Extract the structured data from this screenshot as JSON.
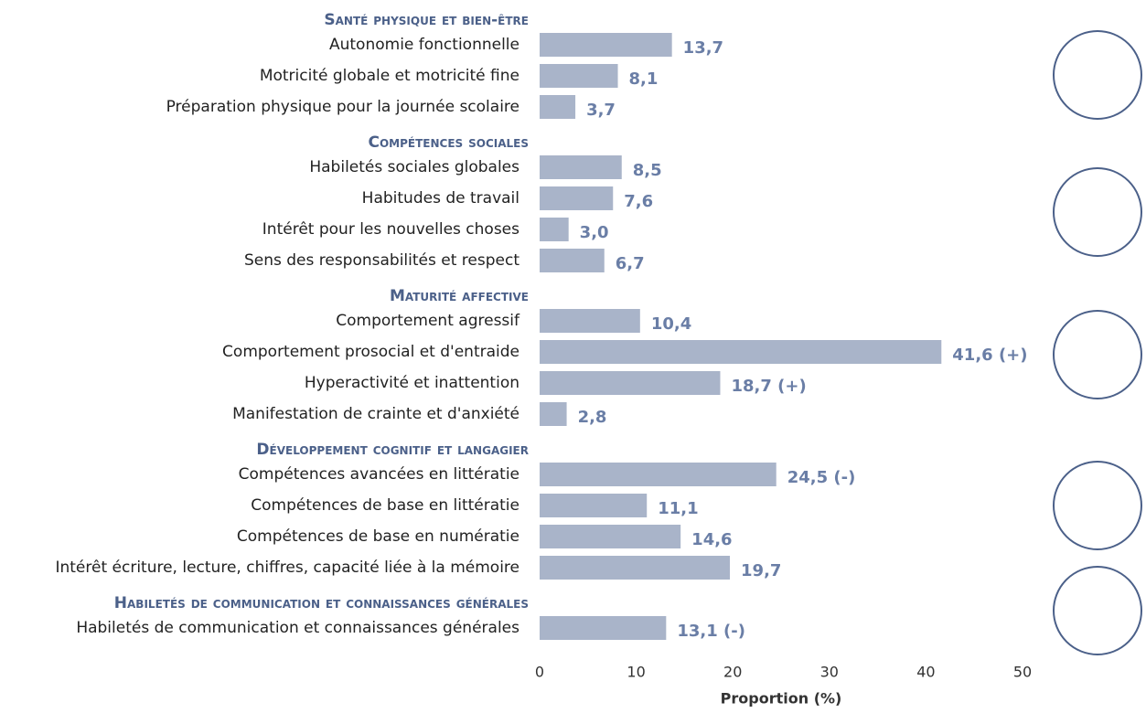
{
  "chart_data": {
    "type": "bar",
    "orientation": "horizontal",
    "color": "#a9b4c9",
    "label_color": "#6a7ea6",
    "xlabel": "Proportion (%)",
    "xlim": [
      0,
      50
    ],
    "xticks": [
      0,
      10,
      20,
      30,
      40,
      50
    ],
    "groups": [
      {
        "title": "Santé physique et bien-être",
        "categories": [
          "Autonomie fonctionnelle",
          "Motricité globale et motricité fine",
          "Préparation physique pour la journée scolaire"
        ],
        "values": [
          13.7,
          8.1,
          3.7
        ],
        "value_labels": [
          "13,7",
          "8,1",
          "3,7"
        ]
      },
      {
        "title": "Compétences sociales",
        "categories": [
          "Habiletés sociales globales",
          "Habitudes de travail",
          "Intérêt pour les nouvelles choses",
          "Sens des responsabilités et respect"
        ],
        "values": [
          8.5,
          7.6,
          3.0,
          6.7
        ],
        "value_labels": [
          "8,5",
          "7,6",
          "3,0",
          "6,7"
        ]
      },
      {
        "title": "Maturité affective",
        "categories": [
          "Comportement agressif",
          "Comportement prosocial et d'entraide",
          "Hyperactivité et inattention",
          "Manifestation de crainte et d'anxiété"
        ],
        "values": [
          10.4,
          41.6,
          18.7,
          2.8
        ],
        "value_labels": [
          "10,4",
          "41,6 (+)",
          "18,7 (+)",
          "2,8"
        ]
      },
      {
        "title": "Développement cognitif et langagier",
        "categories": [
          "Compétences avancées en littératie",
          "Compétences de base en littératie",
          "Compétences de base en numératie",
          "Intérêt écriture, lecture, chiffres, capacité liée à la mémoire"
        ],
        "values": [
          24.5,
          11.1,
          14.6,
          19.7
        ],
        "value_labels": [
          "24,5 (-)",
          "11,1",
          "14,6",
          "19,7"
        ]
      },
      {
        "title": "Habiletés de communication et connaissances générales",
        "categories": [
          "Habiletés de communication et connaissances générales"
        ],
        "values": [
          13.1
        ],
        "value_labels": [
          "13,1 (-)"
        ]
      }
    ]
  }
}
